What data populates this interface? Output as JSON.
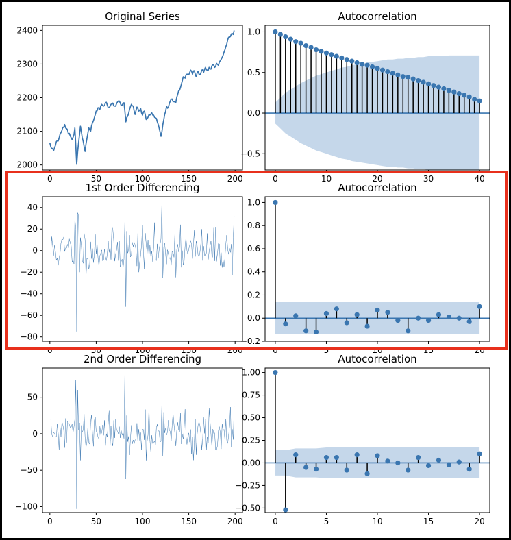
{
  "figure": {
    "highlight_color": "#e8301c",
    "series_color": "#3a76b0",
    "band_color": "#c5d7ea"
  },
  "chart_data": [
    {
      "type": "line",
      "title": "Original Series",
      "xlabel": "",
      "ylabel": "",
      "xlim": [
        -8,
        208
      ],
      "ylim": [
        1985,
        2415
      ],
      "xticks": [
        0,
        50,
        100,
        150,
        200
      ],
      "yticks": [
        2000,
        2100,
        2200,
        2300,
        2400
      ],
      "ytick_labels": [
        "2000",
        "2100",
        "2200",
        "2300",
        "2400"
      ],
      "line_width": 1.7,
      "knots": [
        [
          0,
          2065
        ],
        [
          2,
          2048
        ],
        [
          4,
          2042
        ],
        [
          6,
          2058
        ],
        [
          8,
          2072
        ],
        [
          10,
          2080
        ],
        [
          12,
          2096
        ],
        [
          14,
          2112
        ],
        [
          16,
          2120
        ],
        [
          18,
          2108
        ],
        [
          20,
          2092
        ],
        [
          22,
          2086
        ],
        [
          24,
          2075
        ],
        [
          26,
          2090
        ],
        [
          27,
          2110
        ],
        [
          28,
          2055
        ],
        [
          29,
          2002
        ],
        [
          30,
          2040
        ],
        [
          32,
          2090
        ],
        [
          33,
          2115
        ],
        [
          35,
          2080
        ],
        [
          37,
          2055
        ],
        [
          38,
          2040
        ],
        [
          40,
          2078
        ],
        [
          42,
          2110
        ],
        [
          44,
          2100
        ],
        [
          46,
          2125
        ],
        [
          48,
          2140
        ],
        [
          50,
          2160
        ],
        [
          52,
          2170
        ],
        [
          54,
          2165
        ],
        [
          56,
          2180
        ],
        [
          58,
          2175
        ],
        [
          60,
          2185
        ],
        [
          62,
          2178
        ],
        [
          64,
          2170
        ],
        [
          66,
          2180
        ],
        [
          68,
          2184
        ],
        [
          70,
          2175
        ],
        [
          72,
          2182
        ],
        [
          74,
          2190
        ],
        [
          76,
          2184
        ],
        [
          78,
          2178
        ],
        [
          80,
          2185
        ],
        [
          81,
          2160
        ],
        [
          82,
          2128
        ],
        [
          84,
          2145
        ],
        [
          86,
          2165
        ],
        [
          88,
          2180
        ],
        [
          90,
          2175
        ],
        [
          92,
          2150
        ],
        [
          94,
          2172
        ],
        [
          96,
          2160
        ],
        [
          98,
          2168
        ],
        [
          100,
          2148
        ],
        [
          102,
          2160
        ],
        [
          104,
          2135
        ],
        [
          106,
          2142
        ],
        [
          108,
          2148
        ],
        [
          110,
          2155
        ],
        [
          112,
          2148
        ],
        [
          114,
          2140
        ],
        [
          116,
          2128
        ],
        [
          118,
          2110
        ],
        [
          120,
          2085
        ],
        [
          122,
          2120
        ],
        [
          124,
          2150
        ],
        [
          126,
          2175
        ],
        [
          128,
          2172
        ],
        [
          130,
          2190
        ],
        [
          132,
          2196
        ],
        [
          134,
          2188
        ],
        [
          136,
          2186
        ],
        [
          138,
          2210
        ],
        [
          140,
          2222
        ],
        [
          142,
          2240
        ],
        [
          144,
          2262
        ],
        [
          146,
          2258
        ],
        [
          148,
          2270
        ],
        [
          150,
          2268
        ],
        [
          152,
          2282
        ],
        [
          154,
          2270
        ],
        [
          156,
          2280
        ],
        [
          158,
          2262
        ],
        [
          160,
          2278
        ],
        [
          162,
          2268
        ],
        [
          164,
          2282
        ],
        [
          166,
          2275
        ],
        [
          168,
          2290
        ],
        [
          170,
          2282
        ],
        [
          172,
          2290
        ],
        [
          174,
          2285
        ],
        [
          176,
          2298
        ],
        [
          178,
          2290
        ],
        [
          180,
          2302
        ],
        [
          182,
          2296
        ],
        [
          184,
          2310
        ],
        [
          186,
          2320
        ],
        [
          188,
          2335
        ],
        [
          190,
          2352
        ],
        [
          192,
          2372
        ],
        [
          194,
          2380
        ],
        [
          196,
          2390
        ],
        [
          198,
          2388
        ],
        [
          199,
          2400
        ]
      ]
    },
    {
      "type": "stem",
      "title": "Autocorrelation",
      "xlabel": "",
      "ylabel": "",
      "xlim": [
        -2,
        42
      ],
      "ylim": [
        -0.7,
        1.08
      ],
      "xticks": [
        0,
        10,
        20,
        30,
        40
      ],
      "yticks": [
        -0.5,
        0,
        0.5,
        1
      ],
      "ytick_labels": [
        "−0.5",
        "0.0",
        "0.5",
        "1.0"
      ],
      "lags": [
        0,
        1,
        2,
        3,
        4,
        5,
        6,
        7,
        8,
        9,
        10,
        11,
        12,
        13,
        14,
        15,
        16,
        17,
        18,
        19,
        20,
        21,
        22,
        23,
        24,
        25,
        26,
        27,
        28,
        29,
        30,
        31,
        32,
        33,
        34,
        35,
        36,
        37,
        38,
        39,
        40
      ],
      "values": [
        1.0,
        0.97,
        0.94,
        0.91,
        0.88,
        0.86,
        0.83,
        0.81,
        0.78,
        0.76,
        0.74,
        0.72,
        0.7,
        0.68,
        0.66,
        0.64,
        0.62,
        0.6,
        0.59,
        0.57,
        0.55,
        0.53,
        0.51,
        0.49,
        0.47,
        0.45,
        0.44,
        0.42,
        0.4,
        0.38,
        0.36,
        0.34,
        0.32,
        0.3,
        0.28,
        0.26,
        0.24,
        0.22,
        0.2,
        0.17,
        0.15
      ],
      "confidence_band": [
        0.13,
        0.19,
        0.25,
        0.29,
        0.33,
        0.37,
        0.4,
        0.43,
        0.46,
        0.48,
        0.5,
        0.52,
        0.54,
        0.56,
        0.57,
        0.59,
        0.6,
        0.61,
        0.62,
        0.63,
        0.64,
        0.65,
        0.66,
        0.66,
        0.67,
        0.67,
        0.68,
        0.68,
        0.69,
        0.69,
        0.7,
        0.7,
        0.7,
        0.7,
        0.71,
        0.71,
        0.71,
        0.71,
        0.71,
        0.71,
        0.71
      ]
    },
    {
      "type": "line",
      "title": "1st Order Differencing",
      "xlabel": "",
      "ylabel": "",
      "xlim": [
        -8,
        208
      ],
      "ylim": [
        -84,
        50
      ],
      "xticks": [
        0,
        50,
        100,
        150,
        200
      ],
      "yticks": [
        -80,
        -60,
        -40,
        -20,
        0,
        20,
        40
      ],
      "ytick_labels": [
        "−80",
        "−60",
        "−40",
        "−20",
        "0",
        "20",
        "40"
      ],
      "line_width": 0.5,
      "seed": 11,
      "noise_sd": 10,
      "spikes": [
        [
          27,
          30
        ],
        [
          28,
          20
        ],
        [
          29,
          -75
        ],
        [
          30,
          35
        ],
        [
          31,
          33
        ],
        [
          32,
          -20
        ],
        [
          81,
          28
        ],
        [
          82,
          -52
        ],
        [
          83,
          18
        ],
        [
          121,
          46
        ],
        [
          122,
          -25
        ],
        [
          141,
          24
        ],
        [
          198,
          12
        ],
        [
          199,
          32
        ]
      ]
    },
    {
      "type": "stem",
      "title": "Autocorrelation",
      "xlabel": "",
      "ylabel": "",
      "xlim": [
        -1,
        21
      ],
      "ylim": [
        -0.2,
        1.05
      ],
      "xticks": [
        0,
        5,
        10,
        15,
        20
      ],
      "yticks": [
        -0.2,
        0,
        0.2,
        0.4,
        0.6,
        0.8,
        1
      ],
      "ytick_labels": [
        "−0.2",
        "0.0",
        "0.2",
        "0.4",
        "0.6",
        "0.8",
        "1.0"
      ],
      "lags": [
        0,
        1,
        2,
        3,
        4,
        5,
        6,
        7,
        8,
        9,
        10,
        11,
        12,
        13,
        14,
        15,
        16,
        17,
        18,
        19,
        20
      ],
      "values": [
        1.0,
        -0.05,
        0.02,
        -0.11,
        -0.12,
        0.04,
        0.08,
        -0.04,
        0.03,
        -0.07,
        0.07,
        0.05,
        -0.02,
        -0.11,
        0.0,
        -0.02,
        0.03,
        0.01,
        0.0,
        -0.03,
        0.1
      ],
      "confidence_band": [
        0.14,
        0.14,
        0.14,
        0.14,
        0.14,
        0.14,
        0.14,
        0.14,
        0.14,
        0.14,
        0.14,
        0.14,
        0.14,
        0.14,
        0.14,
        0.14,
        0.14,
        0.14,
        0.14,
        0.14,
        0.14
      ]
    },
    {
      "type": "line",
      "title": "2nd Order Differencing",
      "xlabel": "",
      "ylabel": "",
      "xlim": [
        -8,
        208
      ],
      "ylim": [
        -108,
        90
      ],
      "xticks": [
        0,
        50,
        100,
        150,
        200
      ],
      "yticks": [
        -100,
        -50,
        0,
        50
      ],
      "ytick_labels": [
        "−100",
        "−50",
        "0",
        "50"
      ],
      "line_width": 0.5,
      "seed": 29,
      "noise_sd": 14,
      "spikes": [
        [
          27,
          20
        ],
        [
          28,
          74
        ],
        [
          29,
          -103
        ],
        [
          30,
          60
        ],
        [
          31,
          5
        ],
        [
          81,
          84
        ],
        [
          82,
          -62
        ],
        [
          83,
          25
        ],
        [
          121,
          45
        ],
        [
          122,
          -30
        ],
        [
          141,
          28
        ],
        [
          198,
          -8
        ],
        [
          199,
          38
        ]
      ]
    },
    {
      "type": "stem",
      "title": "Autocorrelation",
      "xlabel": "",
      "ylabel": "",
      "xlim": [
        -1,
        21
      ],
      "ylim": [
        -0.55,
        1.05
      ],
      "xticks": [
        0,
        5,
        10,
        15,
        20
      ],
      "yticks": [
        -0.5,
        -0.25,
        0,
        0.25,
        0.5,
        0.75,
        1
      ],
      "ytick_labels": [
        "−0.50",
        "−0.25",
        "0.00",
        "0.25",
        "0.50",
        "0.75",
        "1.00"
      ],
      "lags": [
        0,
        1,
        2,
        3,
        4,
        5,
        6,
        7,
        8,
        9,
        10,
        11,
        12,
        13,
        14,
        15,
        16,
        17,
        18,
        19,
        20
      ],
      "values": [
        1.0,
        -0.52,
        0.09,
        -0.05,
        -0.07,
        0.06,
        0.06,
        -0.08,
        0.09,
        -0.12,
        0.08,
        0.02,
        0.0,
        -0.08,
        0.06,
        -0.03,
        0.03,
        -0.02,
        0.01,
        -0.07,
        0.1
      ],
      "confidence_band": [
        0.14,
        0.14,
        0.16,
        0.16,
        0.16,
        0.17,
        0.17,
        0.17,
        0.17,
        0.17,
        0.17,
        0.17,
        0.17,
        0.17,
        0.17,
        0.17,
        0.17,
        0.17,
        0.17,
        0.17,
        0.17
      ]
    }
  ]
}
